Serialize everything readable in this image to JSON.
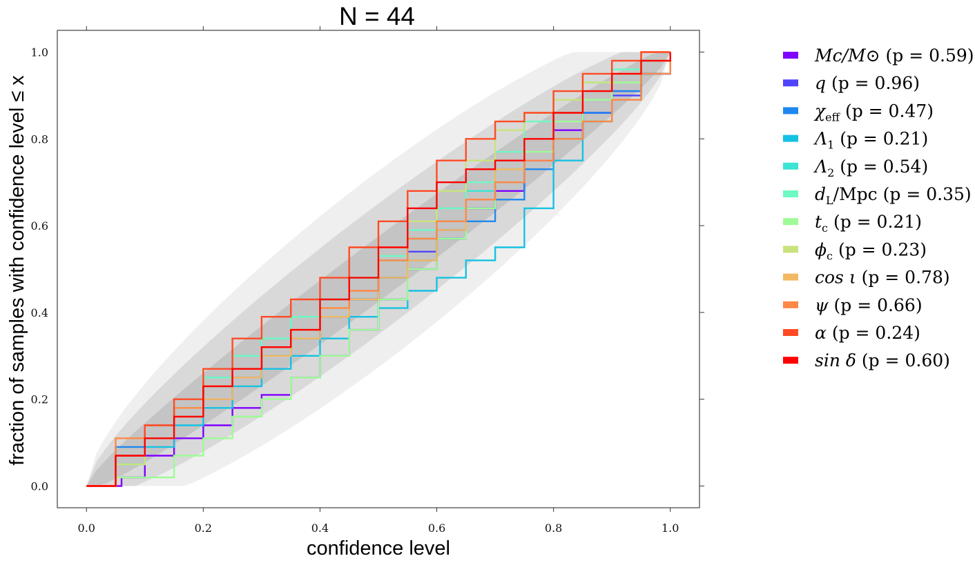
{
  "chart_data": {
    "type": "line",
    "title": "N = 44",
    "xlabel": "confidence level",
    "ylabel": "fraction of samples with confidence level ≤ x",
    "xlim": [
      -0.05,
      1.05
    ],
    "ylim": [
      -0.05,
      1.05
    ],
    "xticks": [
      "0.0",
      "0.2",
      "0.4",
      "0.6",
      "0.8",
      "1.0"
    ],
    "yticks": [
      "0.0",
      "0.2",
      "0.4",
      "0.6",
      "0.8",
      "1.0"
    ],
    "grid": false,
    "legend_position": "outside-right",
    "n_samples": 44,
    "confidence_bands": [
      {
        "sigma": 1,
        "color": "#c4c4c4"
      },
      {
        "sigma": 2,
        "color": "#d9d9d9"
      },
      {
        "sigma": 3,
        "color": "#efefef"
      }
    ],
    "series": [
      {
        "name": "Mc/M⊙ (p = 0.59)",
        "color": "#7f00ff",
        "x": [
          0,
          0.06,
          0.1,
          0.15,
          0.2,
          0.25,
          0.3,
          0.35,
          0.4,
          0.45,
          0.5,
          0.55,
          0.6,
          0.65,
          0.7,
          0.75,
          0.8,
          0.85,
          0.9,
          0.95,
          1.0
        ],
        "y": [
          0,
          0.02,
          0.07,
          0.11,
          0.14,
          0.18,
          0.21,
          0.25,
          0.3,
          0.36,
          0.43,
          0.5,
          0.57,
          0.64,
          0.68,
          0.75,
          0.82,
          0.86,
          0.91,
          0.95,
          1.0
        ]
      },
      {
        "name": "q (p = 0.96)",
        "color": "#4f44fb",
        "x": [
          0,
          0.05,
          0.1,
          0.15,
          0.2,
          0.25,
          0.3,
          0.35,
          0.4,
          0.45,
          0.5,
          0.55,
          0.6,
          0.65,
          0.7,
          0.75,
          0.8,
          0.85,
          0.9,
          0.95,
          1.0
        ],
        "y": [
          0,
          0.07,
          0.11,
          0.16,
          0.2,
          0.25,
          0.3,
          0.34,
          0.39,
          0.43,
          0.48,
          0.54,
          0.59,
          0.64,
          0.7,
          0.75,
          0.8,
          0.86,
          0.9,
          0.95,
          1.0
        ]
      },
      {
        "name": "χeff (p = 0.47)",
        "color": "#1e88f0",
        "x": [
          0,
          0.05,
          0.1,
          0.15,
          0.2,
          0.25,
          0.3,
          0.35,
          0.4,
          0.45,
          0.5,
          0.55,
          0.6,
          0.65,
          0.7,
          0.75,
          0.8,
          0.85,
          0.9,
          0.95,
          1.0
        ],
        "y": [
          0,
          0.09,
          0.14,
          0.18,
          0.23,
          0.27,
          0.3,
          0.34,
          0.39,
          0.43,
          0.48,
          0.52,
          0.57,
          0.61,
          0.66,
          0.73,
          0.8,
          0.86,
          0.91,
          0.95,
          1.0
        ]
      },
      {
        "name": "Λ1 (p = 0.21)",
        "color": "#15c1e3",
        "x": [
          0,
          0.05,
          0.1,
          0.15,
          0.2,
          0.25,
          0.3,
          0.35,
          0.4,
          0.45,
          0.5,
          0.55,
          0.6,
          0.65,
          0.7,
          0.75,
          0.8,
          0.85,
          0.9,
          0.95,
          1.0
        ],
        "y": [
          0,
          0.05,
          0.09,
          0.14,
          0.18,
          0.23,
          0.27,
          0.3,
          0.34,
          0.39,
          0.41,
          0.45,
          0.48,
          0.52,
          0.55,
          0.64,
          0.75,
          0.84,
          0.89,
          0.95,
          1.0
        ]
      },
      {
        "name": "Λ2 (p = 0.54)",
        "color": "#3be4d4",
        "x": [
          0,
          0.05,
          0.1,
          0.15,
          0.2,
          0.25,
          0.3,
          0.35,
          0.4,
          0.45,
          0.5,
          0.55,
          0.6,
          0.65,
          0.7,
          0.75,
          0.8,
          0.85,
          0.9,
          0.95,
          1.0
        ],
        "y": [
          0,
          0.05,
          0.11,
          0.18,
          0.25,
          0.3,
          0.34,
          0.39,
          0.43,
          0.48,
          0.52,
          0.57,
          0.61,
          0.68,
          0.73,
          0.8,
          0.86,
          0.91,
          0.95,
          0.98,
          1.0
        ]
      },
      {
        "name": "dL/Mpc (p = 0.35)",
        "color": "#6cf9c3",
        "x": [
          0,
          0.05,
          0.1,
          0.15,
          0.2,
          0.25,
          0.3,
          0.35,
          0.4,
          0.45,
          0.5,
          0.55,
          0.6,
          0.65,
          0.7,
          0.75,
          0.8,
          0.85,
          0.9,
          0.95,
          1.0
        ],
        "y": [
          0,
          0.05,
          0.11,
          0.18,
          0.25,
          0.3,
          0.34,
          0.39,
          0.43,
          0.48,
          0.53,
          0.59,
          0.64,
          0.7,
          0.77,
          0.84,
          0.89,
          0.93,
          0.96,
          0.98,
          1.0
        ]
      },
      {
        "name": "tc (p = 0.21)",
        "color": "#9efb96",
        "x": [
          0,
          0.05,
          0.1,
          0.15,
          0.2,
          0.25,
          0.3,
          0.35,
          0.4,
          0.45,
          0.5,
          0.55,
          0.6,
          0.65,
          0.7,
          0.75,
          0.8,
          0.85,
          0.9,
          0.95,
          1.0
        ],
        "y": [
          0,
          0.02,
          0.02,
          0.07,
          0.11,
          0.16,
          0.2,
          0.25,
          0.3,
          0.36,
          0.43,
          0.5,
          0.57,
          0.64,
          0.7,
          0.77,
          0.84,
          0.89,
          0.93,
          0.98,
          1.0
        ]
      },
      {
        "name": "ϕc (p = 0.23)",
        "color": "#c9e37c",
        "x": [
          0,
          0.05,
          0.1,
          0.15,
          0.2,
          0.25,
          0.3,
          0.35,
          0.4,
          0.45,
          0.5,
          0.55,
          0.6,
          0.65,
          0.7,
          0.75,
          0.8,
          0.85,
          0.9,
          0.95,
          1.0
        ],
        "y": [
          0,
          0.05,
          0.11,
          0.16,
          0.23,
          0.27,
          0.32,
          0.36,
          0.41,
          0.48,
          0.55,
          0.61,
          0.68,
          0.75,
          0.82,
          0.86,
          0.89,
          0.93,
          0.95,
          0.98,
          1.0
        ]
      },
      {
        "name": "cos ι (p = 0.78)",
        "color": "#f2b961",
        "x": [
          0,
          0.05,
          0.1,
          0.15,
          0.2,
          0.25,
          0.3,
          0.35,
          0.4,
          0.45,
          0.5,
          0.55,
          0.6,
          0.65,
          0.7,
          0.75,
          0.8,
          0.85,
          0.9,
          0.95,
          1.0
        ],
        "y": [
          0,
          0.07,
          0.11,
          0.16,
          0.2,
          0.25,
          0.3,
          0.34,
          0.39,
          0.43,
          0.48,
          0.52,
          0.59,
          0.66,
          0.73,
          0.8,
          0.86,
          0.91,
          0.95,
          1.0,
          1.0
        ]
      },
      {
        "name": "ψ (p = 0.66)",
        "color": "#ff8846",
        "x": [
          0,
          0.05,
          0.1,
          0.15,
          0.2,
          0.25,
          0.3,
          0.35,
          0.4,
          0.45,
          0.5,
          0.55,
          0.6,
          0.65,
          0.7,
          0.75,
          0.8,
          0.85,
          0.9,
          0.95,
          1.0
        ],
        "y": [
          0,
          0.11,
          0.14,
          0.18,
          0.23,
          0.27,
          0.32,
          0.36,
          0.41,
          0.45,
          0.52,
          0.57,
          0.61,
          0.66,
          0.7,
          0.75,
          0.8,
          0.84,
          0.89,
          0.95,
          1.0
        ]
      },
      {
        "name": "α (p = 0.24)",
        "color": "#ff4a24",
        "x": [
          0,
          0.05,
          0.1,
          0.15,
          0.2,
          0.25,
          0.3,
          0.35,
          0.4,
          0.45,
          0.5,
          0.55,
          0.6,
          0.65,
          0.7,
          0.75,
          0.8,
          0.85,
          0.9,
          0.95,
          1.0
        ],
        "y": [
          0,
          0.07,
          0.14,
          0.2,
          0.27,
          0.34,
          0.39,
          0.43,
          0.48,
          0.55,
          0.61,
          0.68,
          0.75,
          0.8,
          0.84,
          0.86,
          0.91,
          0.95,
          0.98,
          1.0,
          1.0
        ]
      },
      {
        "name": "sin δ (p = 0.60)",
        "color": "#ff0000",
        "x": [
          0,
          0.05,
          0.1,
          0.15,
          0.2,
          0.25,
          0.3,
          0.35,
          0.4,
          0.45,
          0.5,
          0.55,
          0.6,
          0.65,
          0.7,
          0.75,
          0.8,
          0.85,
          0.9,
          0.95,
          1.0
        ],
        "y": [
          0,
          0.07,
          0.11,
          0.16,
          0.23,
          0.27,
          0.32,
          0.36,
          0.43,
          0.48,
          0.55,
          0.64,
          0.7,
          0.73,
          0.75,
          0.8,
          0.86,
          0.91,
          0.95,
          0.98,
          1.0
        ]
      }
    ],
    "legend": [
      {
        "label": "Mc/M⊙",
        "sub": "",
        "p_text": "(p = 0.59)"
      },
      {
        "label": "q",
        "sub": "",
        "p_text": "(p = 0.96)"
      },
      {
        "label": "χ",
        "sub": "eff",
        "p_text": "(p = 0.47)"
      },
      {
        "label": "Λ",
        "sub": "1",
        "p_text": "(p = 0.21)"
      },
      {
        "label": "Λ",
        "sub": "2",
        "p_text": "(p = 0.54)"
      },
      {
        "label": "d",
        "sub": "L",
        "suffix": "/Mpc",
        "p_text": "(p = 0.35)"
      },
      {
        "label": "t",
        "sub": "c",
        "p_text": "(p = 0.21)"
      },
      {
        "label": "ϕ",
        "sub": "c",
        "p_text": "(p = 0.23)"
      },
      {
        "label": "cos ι",
        "sub": "",
        "p_text": "(p = 0.78)"
      },
      {
        "label": "ψ",
        "sub": "",
        "p_text": "(p = 0.66)"
      },
      {
        "label": "α",
        "sub": "",
        "p_text": "(p = 0.24)"
      },
      {
        "label": "sin δ",
        "sub": "",
        "p_text": "(p = 0.60)"
      }
    ]
  }
}
